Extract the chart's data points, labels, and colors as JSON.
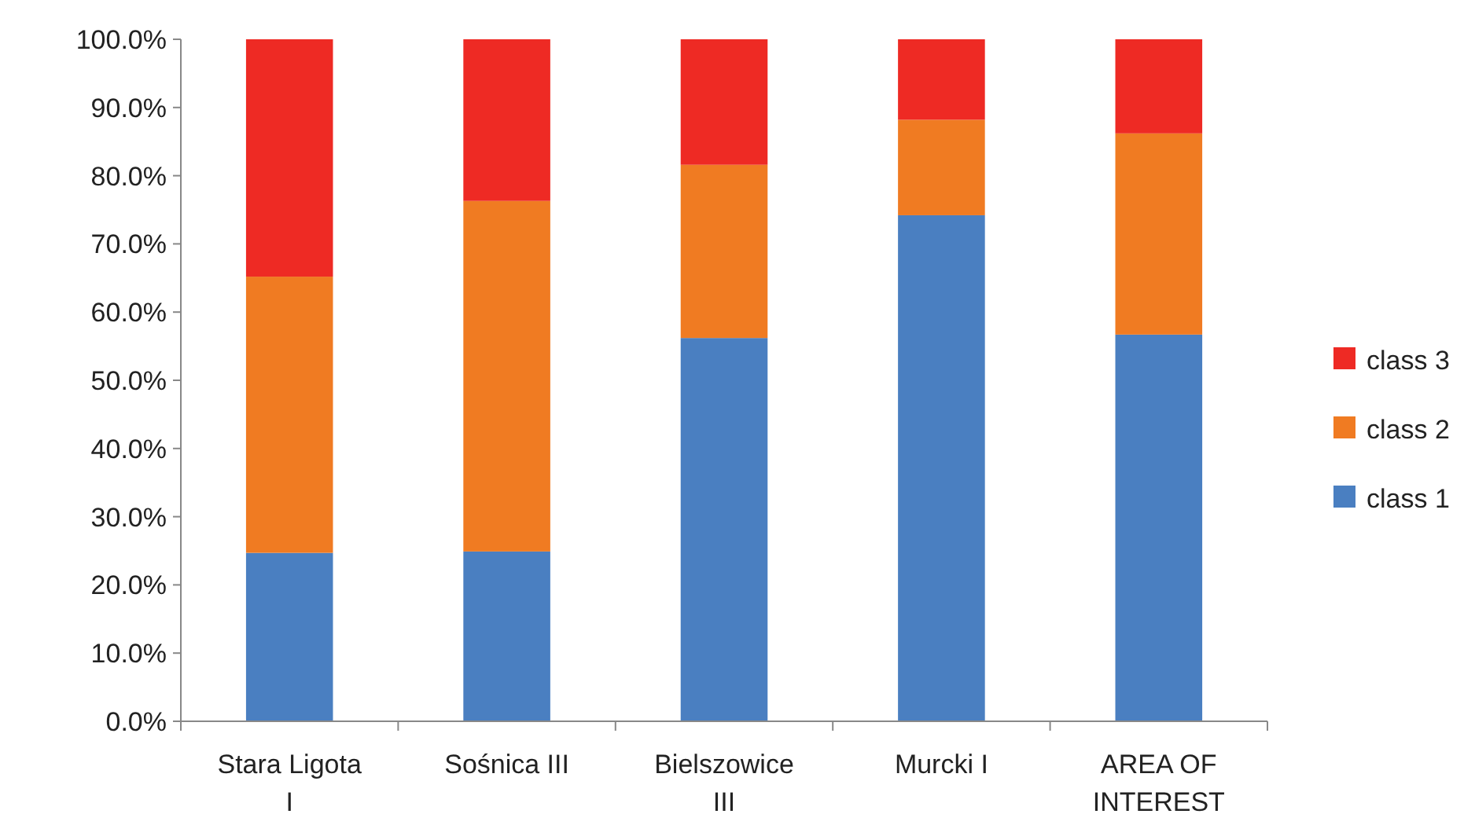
{
  "chart_data": {
    "type": "bar",
    "stacked": true,
    "categories": [
      "Stara Ligota I",
      "Sośnica III",
      "Bielszowice III",
      "Murcki I",
      "AREA OF INTEREST"
    ],
    "series": [
      {
        "name": "class 1",
        "color": "#4a7fc1",
        "values": [
          24.7,
          24.9,
          56.2,
          74.2,
          56.7
        ]
      },
      {
        "name": "class 2",
        "color": "#f07b22",
        "values": [
          40.5,
          51.4,
          25.4,
          14.0,
          29.5
        ]
      },
      {
        "name": "class 3",
        "color": "#ee2a24",
        "values": [
          34.8,
          23.7,
          18.4,
          11.8,
          13.8
        ]
      }
    ],
    "ylim": [
      0,
      100
    ],
    "yticks": [
      {
        "value": 0,
        "label": "0.0%"
      },
      {
        "value": 10,
        "label": "10.0%"
      },
      {
        "value": 20,
        "label": "20.0%"
      },
      {
        "value": 30,
        "label": "30.0%"
      },
      {
        "value": 40,
        "label": "40.0%"
      },
      {
        "value": 50,
        "label": "50.0%"
      },
      {
        "value": 60,
        "label": "60.0%"
      },
      {
        "value": 70,
        "label": "70.0%"
      },
      {
        "value": 80,
        "label": "80.0%"
      },
      {
        "value": 90,
        "label": "90.0%"
      },
      {
        "value": 100,
        "label": "100.0%"
      }
    ],
    "legend": "right"
  }
}
